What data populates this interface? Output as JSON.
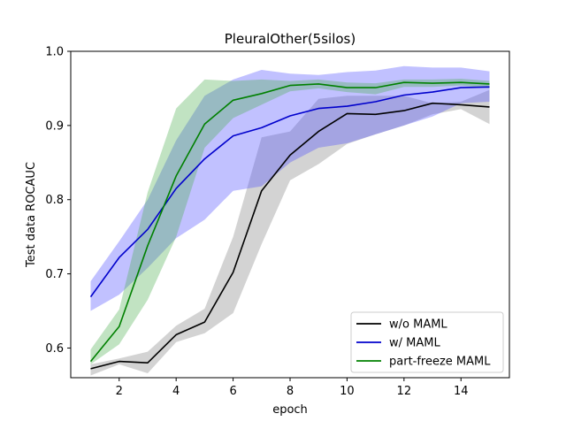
{
  "chart_data": {
    "type": "line",
    "title": "PleuralOther(5silos)",
    "xlabel": "epoch",
    "ylabel": "Test data ROCAUC",
    "xlim": [
      0.3,
      15.7
    ],
    "ylim": [
      0.56,
      1.0
    ],
    "xticks": [
      2,
      4,
      6,
      8,
      10,
      12,
      14
    ],
    "yticks": [
      0.6,
      0.7,
      0.8,
      0.9,
      1.0
    ],
    "ytick_labels": [
      "0.6",
      "0.7",
      "0.8",
      "0.9",
      "1.0"
    ],
    "grid": false,
    "legend_position": "lower-right",
    "x": [
      1,
      2,
      3,
      4,
      5,
      6,
      7,
      8,
      9,
      10,
      11,
      12,
      13,
      14,
      15
    ],
    "series": [
      {
        "name": "w/o MAML",
        "color": "#000000",
        "band_color": "#808080",
        "values": [
          0.572,
          0.582,
          0.58,
          0.618,
          0.635,
          0.702,
          0.812,
          0.86,
          0.892,
          0.916,
          0.915,
          0.92,
          0.93,
          0.928,
          0.925
        ],
        "lower": [
          0.563,
          0.578,
          0.566,
          0.608,
          0.62,
          0.647,
          0.74,
          0.826,
          0.848,
          0.875,
          0.888,
          0.9,
          0.915,
          0.922,
          0.902
        ],
        "upper": [
          0.578,
          0.586,
          0.595,
          0.63,
          0.653,
          0.75,
          0.884,
          0.892,
          0.936,
          0.94,
          0.94,
          0.94,
          0.93,
          0.932,
          0.948
        ]
      },
      {
        "name": "w/ MAML",
        "color": "#0000cc",
        "band_color": "#4d4dff",
        "values": [
          0.669,
          0.722,
          0.76,
          0.815,
          0.855,
          0.886,
          0.897,
          0.913,
          0.923,
          0.926,
          0.932,
          0.941,
          0.945,
          0.951,
          0.952
        ],
        "lower": [
          0.65,
          0.672,
          0.708,
          0.748,
          0.773,
          0.812,
          0.818,
          0.85,
          0.87,
          0.876,
          0.888,
          0.9,
          0.912,
          0.93,
          0.932
        ],
        "upper": [
          0.69,
          0.744,
          0.8,
          0.88,
          0.94,
          0.962,
          0.975,
          0.97,
          0.968,
          0.972,
          0.974,
          0.98,
          0.978,
          0.978,
          0.973
        ]
      },
      {
        "name": "part-freeze MAML",
        "color": "#008000",
        "band_color": "#4caf50",
        "values": [
          0.582,
          0.629,
          0.738,
          0.832,
          0.902,
          0.934,
          0.943,
          0.954,
          0.956,
          0.951,
          0.951,
          0.958,
          0.957,
          0.958,
          0.956
        ],
        "lower": [
          0.578,
          0.605,
          0.665,
          0.75,
          0.87,
          0.91,
          0.928,
          0.946,
          0.95,
          0.945,
          0.942,
          0.952,
          0.952,
          0.954,
          0.95
        ],
        "upper": [
          0.598,
          0.652,
          0.81,
          0.923,
          0.962,
          0.96,
          0.962,
          0.96,
          0.962,
          0.958,
          0.957,
          0.962,
          0.962,
          0.963,
          0.96
        ]
      }
    ]
  }
}
